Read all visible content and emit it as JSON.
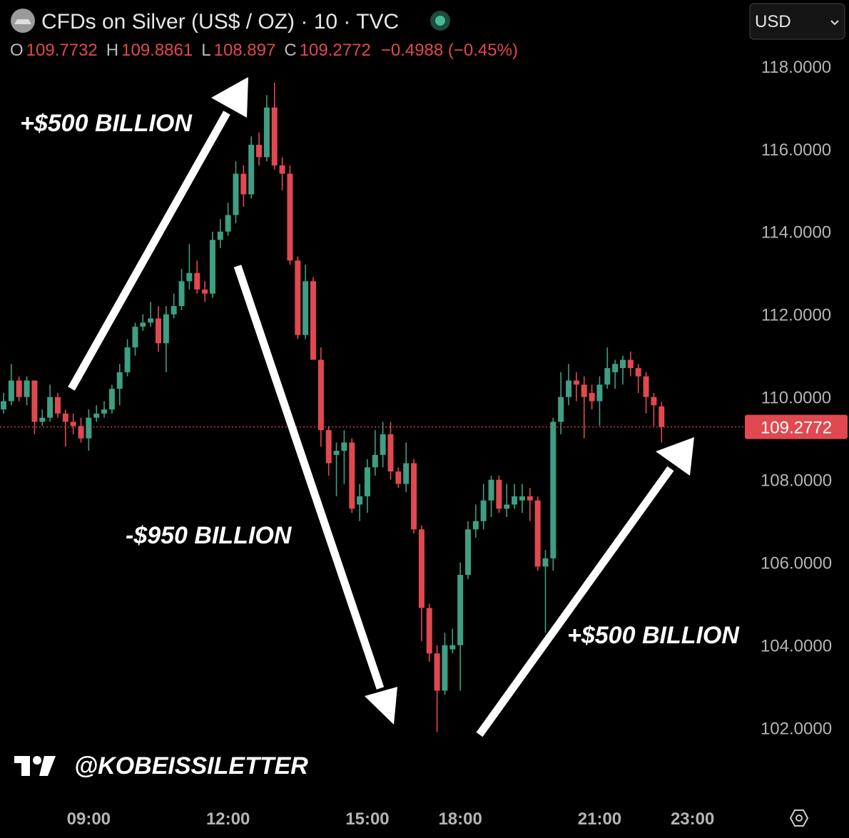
{
  "chart_data": {
    "type": "candlestick",
    "title": "CFDs on Silver (US$ / OZ) · 10 · TVC",
    "legend_labels": [
      "O",
      "H",
      "L",
      "C"
    ],
    "change_label": "−0.4988 (−0.45%)",
    "currency": "USD",
    "up_color": "#3f9e83",
    "down_color": "#e0494f",
    "categories": [
      null,
      null,
      null,
      null,
      null,
      null,
      null,
      null,
      null,
      null,
      null,
      "09:00",
      null,
      null,
      null,
      null,
      null,
      null,
      null,
      null,
      null,
      null,
      null,
      null,
      null,
      null,
      null,
      null,
      null,
      "12:00",
      null,
      null,
      null,
      null,
      null,
      null,
      null,
      null,
      null,
      null,
      null,
      null,
      null,
      null,
      null,
      null,
      null,
      "15:00",
      null,
      null,
      null,
      null,
      null,
      null,
      null,
      null,
      null,
      null,
      null,
      "18:00",
      null,
      null,
      null,
      null,
      null,
      null,
      null,
      null,
      null,
      null,
      null,
      null,
      null,
      null,
      null,
      null,
      null,
      "21:00",
      null,
      null,
      null,
      null,
      null,
      null,
      null,
      null,
      null,
      null,
      null,
      "23:00"
    ],
    "open": [
      109.7,
      109.9,
      110.4,
      110.0,
      110.4,
      109.4,
      109.5,
      110.0,
      109.6,
      109.4,
      109.3,
      109.0,
      109.5,
      109.6,
      109.7,
      110.2,
      110.6,
      111.2,
      111.7,
      111.8,
      111.9,
      111.3,
      112.0,
      112.2,
      112.8,
      113.0,
      112.6,
      112.5,
      113.8,
      114.0,
      114.4,
      115.4,
      114.9,
      116.1,
      115.8,
      117.0,
      115.6,
      115.4,
      113.3,
      111.5,
      112.8,
      110.9,
      109.2,
      108.6,
      108.7,
      108.9,
      107.4,
      107.6,
      108.3,
      108.6,
      109.1,
      108.2,
      107.9,
      108.4,
      106.8,
      104.9,
      103.8,
      102.9,
      103.9,
      104.0,
      105.7,
      106.8,
      107.0,
      107.5,
      108.0,
      107.3,
      107.4,
      107.5,
      107.6,
      107.5,
      105.9,
      106.1,
      109.4,
      110.0,
      110.4,
      110.3,
      110.1,
      109.9,
      110.3,
      110.6,
      110.7,
      110.9,
      110.7,
      110.5,
      110.0,
      109.7732,
      null,
      null,
      null,
      null
    ],
    "high": [
      110.1,
      110.8,
      110.5,
      110.5,
      110.4,
      109.7,
      110.3,
      110.1,
      109.7,
      109.6,
      109.5,
      109.7,
      109.8,
      109.9,
      110.3,
      110.8,
      111.4,
      111.8,
      112.0,
      112.3,
      112.2,
      112.2,
      112.5,
      113.1,
      113.7,
      113.3,
      112.8,
      114.0,
      114.3,
      114.7,
      115.7,
      115.6,
      116.3,
      116.4,
      117.3,
      117.6,
      115.8,
      115.6,
      113.4,
      113.2,
      112.9,
      111.2,
      109.3,
      108.9,
      109.2,
      109.0,
      107.9,
      108.5,
      109.2,
      109.4,
      109.4,
      108.3,
      108.9,
      108.5,
      106.9,
      105.0,
      104.0,
      104.3,
      104.4,
      106.0,
      107.0,
      107.4,
      107.9,
      108.1,
      108.1,
      107.9,
      107.9,
      107.9,
      107.8,
      107.6,
      106.3,
      109.5,
      110.6,
      110.8,
      110.6,
      110.5,
      110.3,
      110.5,
      111.2,
      110.9,
      111.0,
      111.1,
      110.8,
      110.6,
      110.1,
      109.8861,
      null,
      null,
      null,
      null
    ],
    "low": [
      109.6,
      109.8,
      109.9,
      109.8,
      109.1,
      109.3,
      109.4,
      109.5,
      108.8,
      109.1,
      108.9,
      108.7,
      109.4,
      109.5,
      109.6,
      109.8,
      110.5,
      111.0,
      111.6,
      111.7,
      111.1,
      110.6,
      111.9,
      112.1,
      112.6,
      112.5,
      112.3,
      112.4,
      113.6,
      113.9,
      114.2,
      114.6,
      114.8,
      115.6,
      115.7,
      115.5,
      115.0,
      113.2,
      111.4,
      111.4,
      110.9,
      108.8,
      108.1,
      107.6,
      107.9,
      107.2,
      107.0,
      107.2,
      108.1,
      108.3,
      108.0,
      107.8,
      107.7,
      106.7,
      104.1,
      103.6,
      101.9,
      102.8,
      103.8,
      102.9,
      105.6,
      106.6,
      106.8,
      107.1,
      107.2,
      107.1,
      107.3,
      107.2,
      107.0,
      105.8,
      104.3,
      105.8,
      109.1,
      109.8,
      109.9,
      109.0,
      109.7,
      109.3,
      110.2,
      110.2,
      110.3,
      110.5,
      110.1,
      109.6,
      109.3,
      108.897,
      null,
      null,
      null,
      null
    ],
    "close": [
      109.9,
      110.4,
      110.0,
      110.4,
      109.4,
      109.5,
      110.0,
      109.6,
      109.4,
      109.3,
      109.0,
      109.5,
      109.6,
      109.7,
      110.2,
      110.6,
      111.2,
      111.7,
      111.8,
      111.9,
      111.3,
      112.0,
      112.2,
      112.8,
      113.0,
      112.6,
      112.5,
      113.8,
      114.0,
      114.4,
      115.4,
      114.9,
      116.1,
      115.8,
      117.0,
      115.6,
      115.4,
      113.3,
      111.5,
      112.8,
      110.9,
      109.2,
      108.4,
      108.7,
      108.9,
      107.3,
      107.6,
      108.3,
      108.6,
      109.1,
      108.2,
      107.9,
      108.4,
      106.8,
      104.9,
      103.8,
      102.9,
      104.0,
      104.0,
      105.7,
      106.8,
      107.0,
      107.5,
      108.0,
      107.3,
      107.4,
      107.6,
      107.6,
      107.5,
      105.9,
      106.1,
      109.4,
      110.0,
      110.4,
      110.3,
      110.0,
      109.9,
      110.3,
      110.7,
      110.8,
      110.9,
      110.7,
      110.5,
      110.0,
      109.8,
      109.2772,
      null,
      null,
      null,
      null
    ],
    "ylim": [
      100.2,
      119.6
    ],
    "yticks": [
      {
        "value": 118,
        "label": "118.0000"
      },
      {
        "value": 116,
        "label": "116.0000"
      },
      {
        "value": 114,
        "label": "114.0000"
      },
      {
        "value": 112,
        "label": "112.0000"
      },
      {
        "value": 110,
        "label": "110.0000"
      },
      {
        "value": 108,
        "label": "108.0000"
      },
      {
        "value": 106,
        "label": "106.0000"
      },
      {
        "value": 104,
        "label": "104.0000"
      },
      {
        "value": 102,
        "label": "102.0000"
      }
    ],
    "annotations": [
      "+$500 BILLION",
      "-$950 BILLION",
      "+$500 BILLION"
    ],
    "watermark": "@KOBEISSILETTER"
  }
}
